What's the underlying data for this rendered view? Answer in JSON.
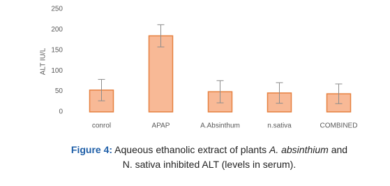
{
  "chart_data": {
    "type": "bar",
    "y_label": "ALT IU/L",
    "categories": [
      "conrol",
      "APAP",
      "A.Absinthum",
      "n.sativa",
      "COMBINED"
    ],
    "values": [
      53,
      185,
      49,
      46,
      44
    ],
    "errors": [
      26,
      27,
      27,
      25,
      24
    ],
    "color": "#f8b996",
    "edge_color": "#e6803f",
    "error_color": "#8c8c8c",
    "ylim": [
      0,
      250
    ],
    "yticks": [
      0,
      50,
      100,
      150,
      200,
      250
    ],
    "grid": false,
    "caption": [
      [
        {
          "text": "Figure 4:",
          "style": "label"
        },
        {
          "text": " Aqueous ethanolic extract of plants ",
          "style": "plain"
        },
        {
          "text": "A. absinthium",
          "style": "italic"
        },
        {
          "text": " and",
          "style": "plain"
        }
      ],
      [
        {
          "text": "N. sativa inhibited ALT (levels in serum).",
          "style": "plain"
        }
      ]
    ]
  }
}
